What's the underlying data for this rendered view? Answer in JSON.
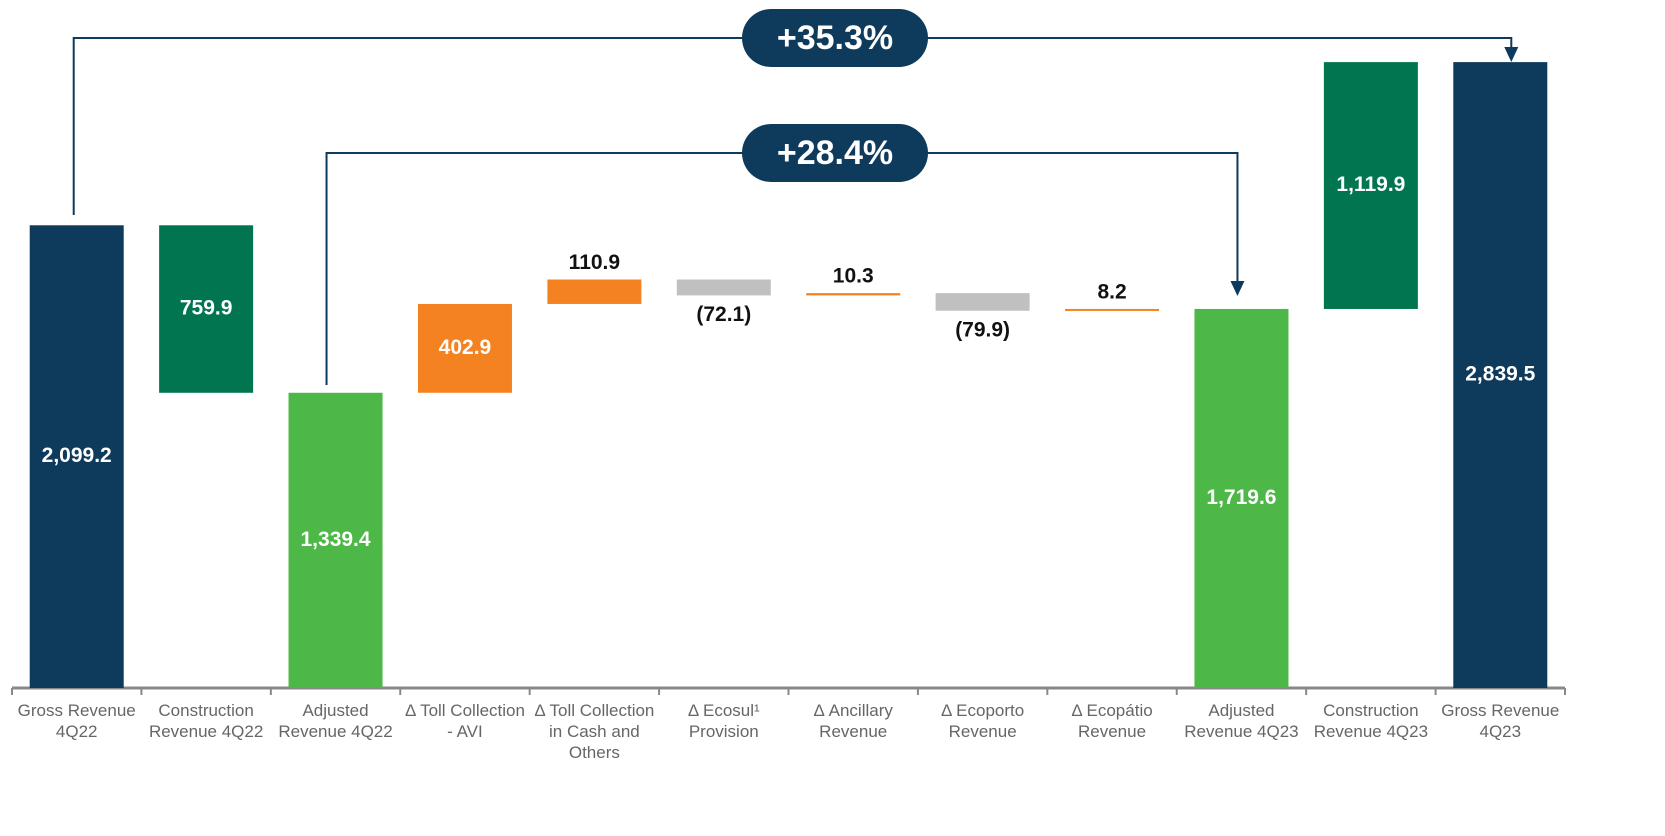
{
  "chart_data": {
    "type": "waterfall",
    "categories": [
      "Gross Revenue 4Q22",
      "Construction Revenue 4Q22",
      "Adjusted Revenue 4Q22",
      "Δ Toll Collection - AVI",
      "Δ Toll Collection in Cash and Others",
      "Δ Ecosul¹ Provision",
      "Δ Ancillary Revenue",
      "Δ Ecoporto Revenue",
      "Δ Ecopátio Revenue",
      "Adjusted Revenue 4Q23",
      "Construction Revenue 4Q23",
      "Gross Revenue 4Q23"
    ],
    "values": [
      2099.2,
      759.9,
      1339.4,
      402.9,
      110.9,
      72.1,
      10.3,
      79.9,
      8.2,
      1719.6,
      1119.9,
      2839.5
    ],
    "value_labels": [
      "2,099.2",
      "759.9",
      "1,339.4",
      "402.9",
      "110.9",
      "(72.1)",
      "10.3",
      "(79.9)",
      "8.2",
      "1,719.6",
      "1,119.9",
      "2,839.5"
    ],
    "measure": [
      "total",
      "decrease",
      "total",
      "increase",
      "increase",
      "decrease",
      "increase",
      "decrease",
      "increase",
      "total",
      "increase",
      "total"
    ],
    "colors": [
      "#0e3a5c",
      "#007550",
      "#4db748",
      "#f58220",
      "#f58220",
      "#c0c0c0",
      "#f58220",
      "#c0c0c0",
      "#f58220",
      "#4db748",
      "#007550",
      "#0e3a5c"
    ],
    "ylim": [
      0,
      2840
    ],
    "annotations": [
      "+35.3%",
      "+28.4%"
    ]
  }
}
